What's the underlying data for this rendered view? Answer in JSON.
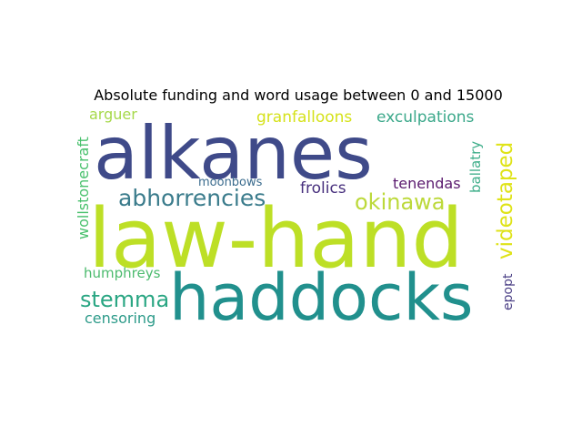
{
  "chart_data": {
    "type": "wordcloud",
    "title": "Absolute funding and word usage between 0 and 15000",
    "words": [
      {
        "text": "alkanes",
        "color": "#3f4a89",
        "orientation": "horizontal"
      },
      {
        "text": "law-hand",
        "color": "#bddf26",
        "orientation": "horizontal"
      },
      {
        "text": "haddocks",
        "color": "#21908d",
        "orientation": "horizontal"
      },
      {
        "text": "abhorrencies",
        "color": "#3b7c8c",
        "orientation": "horizontal"
      },
      {
        "text": "okinawa",
        "color": "#bcd93a",
        "orientation": "horizontal"
      },
      {
        "text": "videotaped",
        "color": "#dfe318",
        "orientation": "vertical"
      },
      {
        "text": "stemma",
        "color": "#2aa683",
        "orientation": "horizontal"
      },
      {
        "text": "granfalloons",
        "color": "#d5e21a",
        "orientation": "horizontal"
      },
      {
        "text": "exculpations",
        "color": "#3ba88a",
        "orientation": "horizontal"
      },
      {
        "text": "arguer",
        "color": "#a6d94b",
        "orientation": "horizontal"
      },
      {
        "text": "wollstonecraft",
        "color": "#49c16d",
        "orientation": "vertical"
      },
      {
        "text": "frolics",
        "color": "#472f7d",
        "orientation": "horizontal"
      },
      {
        "text": "tenendas",
        "color": "#5a1a6e",
        "orientation": "horizontal"
      },
      {
        "text": "ballatry",
        "color": "#3fae8a",
        "orientation": "vertical"
      },
      {
        "text": "moonbows",
        "color": "#3b6c8e",
        "orientation": "horizontal"
      },
      {
        "text": "humphreys",
        "color": "#4cbb6e",
        "orientation": "horizontal"
      },
      {
        "text": "censoring",
        "color": "#2e9b8a",
        "orientation": "horizontal"
      },
      {
        "text": "epopt",
        "color": "#4a3f85",
        "orientation": "vertical"
      }
    ]
  }
}
